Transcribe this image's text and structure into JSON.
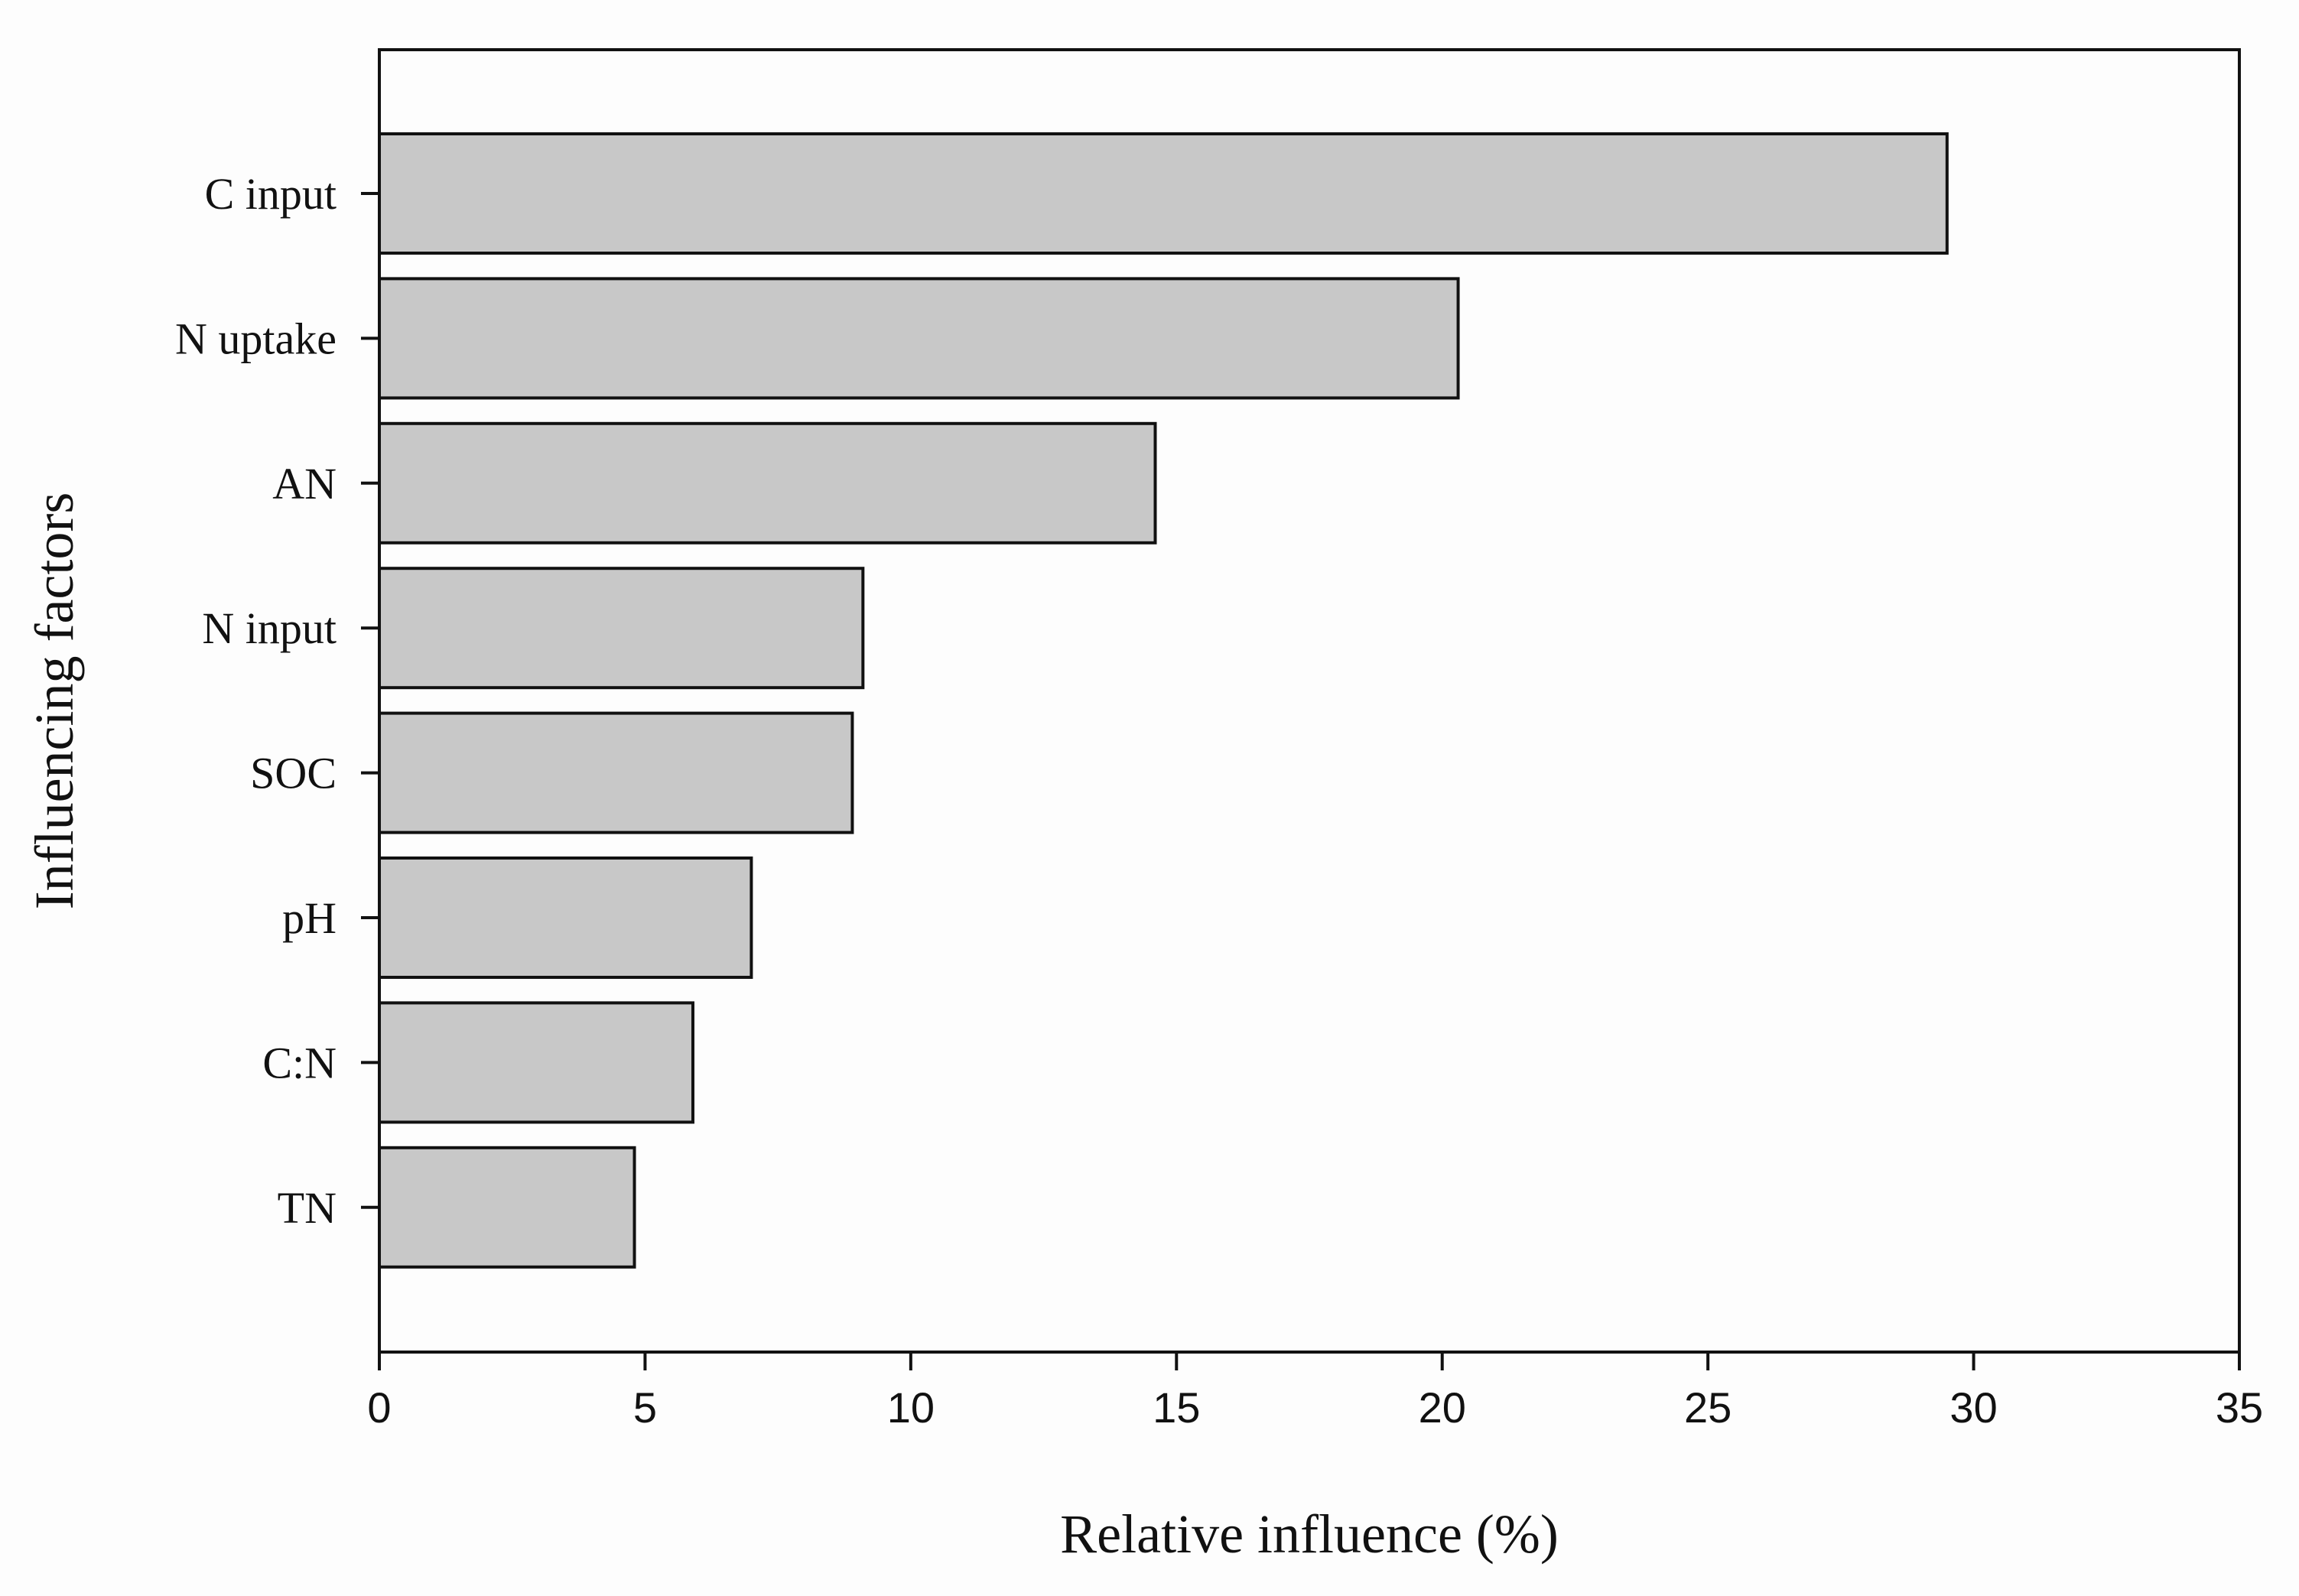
{
  "chart_data": {
    "type": "bar",
    "orientation": "horizontal",
    "categories": [
      "C input",
      "N uptake",
      "AN",
      "N input",
      "SOC",
      "pH",
      "C:N",
      "TN"
    ],
    "values": [
      29.5,
      20.3,
      14.6,
      9.1,
      8.9,
      7.0,
      5.9,
      4.8
    ],
    "xlabel": "Relative influence (%)",
    "ylabel": "Influencing factors",
    "xlim": [
      0,
      35
    ],
    "xticks": [
      "0",
      "5",
      "10",
      "15",
      "20",
      "25",
      "30",
      "35"
    ],
    "grid": false,
    "bar_color": "#c8c8c8",
    "edge_color": "#111111"
  }
}
